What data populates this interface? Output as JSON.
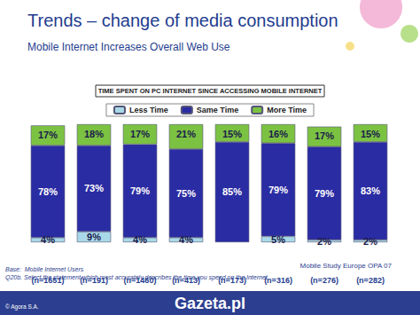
{
  "chart_data": {
    "type": "bar",
    "stacked": true,
    "title": "Trends – change of media consumption",
    "subtitle": "Mobile Internet Increases Overall Web Use",
    "annotations": [
      "TIME SPENT ON PC INTERNET SINCE ACCESSING MOBILE INTERNET",
      "Base:  Mobile Internet Users",
      "Q20b. Select the statement which most accurately describes the time you spend on the Internet",
      "Mobile Study Europe OPA 07",
      "© Agora S.A.",
      "Gazeta.pl"
    ],
    "categories": [
      "(n=1651)",
      "(n=191)",
      "(n=1460)",
      "(n=413)",
      "(n=173)",
      "(n=316)",
      "(n=276)",
      "(n=282)"
    ],
    "series": [
      {
        "name": "Less Time",
        "color": "#a9d9e8",
        "values": [
          4,
          9,
          4,
          4,
          null,
          5,
          2,
          2
        ],
        "value_labels": [
          "4%",
          "9%",
          "4%",
          "4%",
          null,
          "5%",
          "2%",
          "2%"
        ]
      },
      {
        "name": "Same Time",
        "color": "#2a2ca3",
        "values": [
          78,
          73,
          79,
          75,
          85,
          79,
          79,
          83
        ],
        "value_labels": [
          "78%",
          "73%",
          "79%",
          "75%",
          "85%",
          "79%",
          "79%",
          "83%"
        ]
      },
      {
        "name": "More Time",
        "color": "#7cc242",
        "values": [
          17,
          18,
          17,
          21,
          15,
          16,
          17,
          15
        ],
        "value_labels": [
          "17%",
          "18%",
          "17%",
          "21%",
          "15%",
          "16%",
          "17%",
          "15%"
        ]
      }
    ],
    "ylim": [
      0,
      100
    ],
    "data_labels": true,
    "tick_labels": "x",
    "grid": false,
    "legend": "top"
  }
}
